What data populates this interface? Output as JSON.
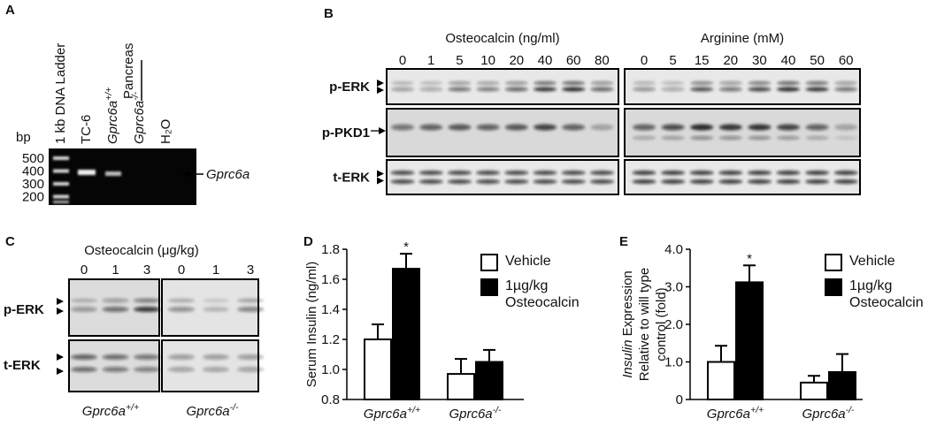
{
  "figure": {
    "panel_a": {
      "letter": "A",
      "ladder": "1 kb DNA Ladder",
      "lanes": [
        "TC-6",
        "Gprc6a+/+",
        "Gprc6a-/-",
        "H₂O"
      ],
      "group": "Pancreas",
      "unit": "bp",
      "sizes": [
        500,
        400,
        300,
        200
      ],
      "band": "Gprc6a"
    },
    "panel_b": {
      "letter": "B",
      "groups": [
        {
          "title": "Osteocalcin (ng/ml)",
          "doses": [
            0,
            1,
            5,
            10,
            20,
            40,
            60,
            80
          ]
        },
        {
          "title": "Arginine (mM)",
          "doses": [
            0,
            5,
            15,
            20,
            30,
            40,
            50,
            60
          ]
        }
      ],
      "rows": [
        "p-ERK",
        "p-PKD1",
        "t-ERK"
      ]
    },
    "panel_c": {
      "letter": "C",
      "title": "Osteocalcin (μg/kg)",
      "groups": [
        {
          "genotype": "Gprc6a+/+",
          "doses": [
            0,
            1,
            3
          ]
        },
        {
          "genotype": "Gprc6a-/-",
          "doses": [
            0,
            1,
            3
          ]
        }
      ],
      "rows": [
        "p-ERK",
        "t-ERK"
      ]
    }
  },
  "chart_data": [
    {
      "type": "bar",
      "panel": "D",
      "y_label": [
        "Serum Insulin (ng/ml)"
      ],
      "categories": [
        "Gprc6a+/+",
        "Gprc6a-/-"
      ],
      "series": [
        {
          "name": "Vehicle",
          "color": "#ffffff",
          "values": [
            1.2,
            0.97
          ],
          "errors": [
            0.1,
            0.1
          ]
        },
        {
          "name": "1µg/kg Osteocalcin",
          "color": "#000000",
          "values": [
            1.67,
            1.05
          ],
          "errors": [
            0.1,
            0.08
          ],
          "significance": [
            "*",
            null
          ]
        }
      ],
      "ylim": [
        0.8,
        1.8
      ],
      "yticks": [
        0.8,
        {
          "value": 1,
          "label": "1.0"
        },
        1.2,
        1.4,
        1.6,
        1.8
      ]
    },
    {
      "type": "bar",
      "panel": "E",
      "y_label_italic": "Insulin",
      "y_label": [
        "Expression",
        "Relative to will type",
        "control (fold)"
      ],
      "categories": [
        "Gprc6a+/+",
        "Gprc6a-/-"
      ],
      "series": [
        {
          "name": "Vehicle",
          "color": "#ffffff",
          "values": [
            1.0,
            0.45
          ],
          "errors": [
            0.43,
            0.18
          ]
        },
        {
          "name": "1µg/kg Osteocalcin",
          "color": "#000000",
          "values": [
            3.12,
            0.73
          ],
          "errors": [
            0.45,
            0.48
          ],
          "significance": [
            "*",
            null
          ]
        }
      ],
      "ylim": [
        0,
        4
      ],
      "yticks": [
        0,
        {
          "value": 1,
          "label": "1.0"
        },
        {
          "value": 2,
          "label": "2.0"
        },
        {
          "value": 3,
          "label": "3.0"
        },
        {
          "value": 4,
          "label": "4.0"
        }
      ]
    }
  ]
}
